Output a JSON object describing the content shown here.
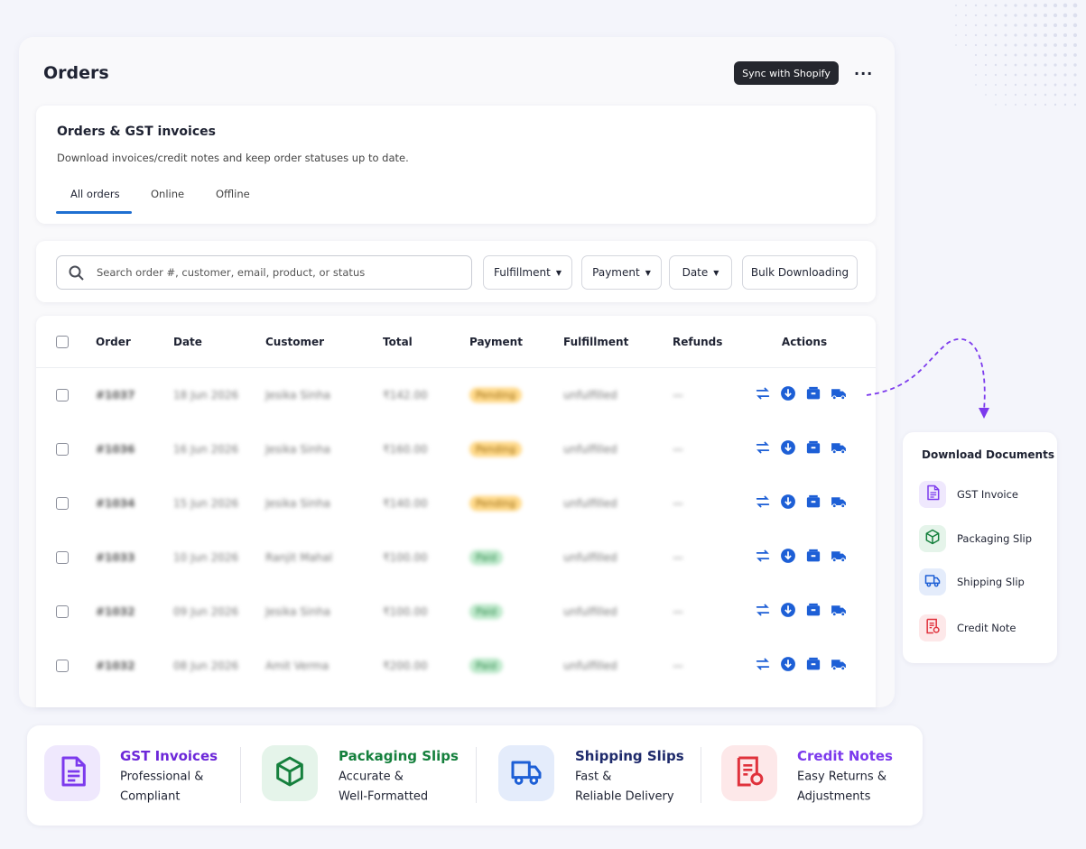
{
  "header": {
    "title": "Orders",
    "sync_button": "Sync with Shopify"
  },
  "card": {
    "title": "Orders & GST invoices",
    "subtitle": "Download invoices/credit notes and keep order statuses up to date.",
    "tabs": [
      "All orders",
      "Online",
      "Offline"
    ]
  },
  "filters": {
    "search_placeholder": "Search order #, customer, email, product, or status",
    "buttons": [
      "Fulfillment",
      "Payment",
      "Date"
    ],
    "bulk": "Bulk Downloading"
  },
  "table": {
    "columns": [
      "Order",
      "Date",
      "Customer",
      "Total",
      "Payment",
      "Fulfillment",
      "Refunds",
      "Actions"
    ],
    "rows": [
      [
        "#1037",
        "18 Jun 2026",
        "Jesika Sinha",
        "₹142.00",
        "Pending",
        "unfulfilled",
        "—"
      ],
      [
        "#1036",
        "16 Jun 2026",
        "Jesika Sinha",
        "₹160.00",
        "Pending",
        "unfulfilled",
        "—"
      ],
      [
        "#1034",
        "15 Jun 2026",
        "Jesika Sinha",
        "₹140.00",
        "Pending",
        "unfulfilled",
        "—"
      ],
      [
        "#1033",
        "10 Jun 2026",
        "Ranjit Mahal",
        "₹100.00",
        "Paid",
        "unfulfilled",
        "—"
      ],
      [
        "#1032",
        "09 Jun 2026",
        "Jesika Sinha",
        "₹100.00",
        "Paid",
        "unfulfilled",
        "—"
      ],
      [
        "#1032",
        "08 Jun 2026",
        "Amit Verma",
        "₹200.00",
        "Paid",
        "unfulfilled",
        "—"
      ]
    ]
  },
  "popup": {
    "title": "Download Documents",
    "items": [
      "GST Invoice",
      "Packaging Slip",
      "Shipping Slip",
      "Credit Note"
    ]
  },
  "features": [
    {
      "title": "GST Invoices",
      "lines": [
        "Professional &",
        "Compliant"
      ]
    },
    {
      "title": "Packaging Slips",
      "lines": [
        "Accurate &",
        "Well-Formatted"
      ]
    },
    {
      "title": "Shipping Slips",
      "lines": [
        "Fast &",
        "Reliable Delivery"
      ]
    },
    {
      "title": "Credit Notes",
      "lines": [
        "Easy Returns &",
        "Adjustments"
      ]
    }
  ]
}
